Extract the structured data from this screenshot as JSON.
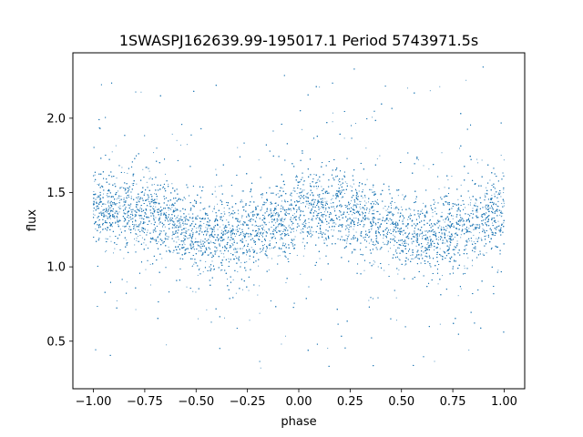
{
  "chart_data": {
    "type": "scatter",
    "title": "1SWASPJ162639.99-195017.1 Period 5743971.5s",
    "xlabel": "phase",
    "ylabel": "flux",
    "xlim": [
      -1.1,
      1.1
    ],
    "ylim": [
      0.18,
      2.44
    ],
    "xticks": [
      -1.0,
      -0.75,
      -0.5,
      -0.25,
      0.0,
      0.25,
      0.5,
      0.75,
      1.0
    ],
    "xtick_labels": [
      "−1.00",
      "−0.75",
      "−0.50",
      "−0.25",
      "0.00",
      "0.25",
      "0.50",
      "0.75",
      "1.00"
    ],
    "yticks": [
      0.5,
      1.0,
      1.5,
      2.0
    ],
    "ytick_labels": [
      "0.5",
      "1.0",
      "1.5",
      "2.0"
    ],
    "grid": false,
    "point_color": "#1f77b4",
    "series": [
      {
        "phase_range": [
          -1.0,
          1.0
        ],
        "flux_profile": [
          [
            -1.0,
            1.38
          ],
          [
            -0.9,
            1.4
          ],
          [
            -0.8,
            1.38
          ],
          [
            -0.7,
            1.36
          ],
          [
            -0.6,
            1.3
          ],
          [
            -0.5,
            1.22
          ],
          [
            -0.4,
            1.2
          ],
          [
            -0.3,
            1.22
          ],
          [
            -0.2,
            1.27
          ],
          [
            -0.1,
            1.31
          ],
          [
            0.0,
            1.37
          ],
          [
            0.1,
            1.38
          ],
          [
            0.2,
            1.38
          ],
          [
            0.3,
            1.36
          ],
          [
            0.4,
            1.3
          ],
          [
            0.5,
            1.22
          ],
          [
            0.6,
            1.2
          ],
          [
            0.7,
            1.22
          ],
          [
            0.8,
            1.27
          ],
          [
            0.9,
            1.3
          ],
          [
            1.0,
            1.37
          ]
        ],
        "flux_scatter": 0.12,
        "outlier_flux_range": [
          0.3,
          2.35
        ],
        "n_points": 14000
      }
    ]
  }
}
